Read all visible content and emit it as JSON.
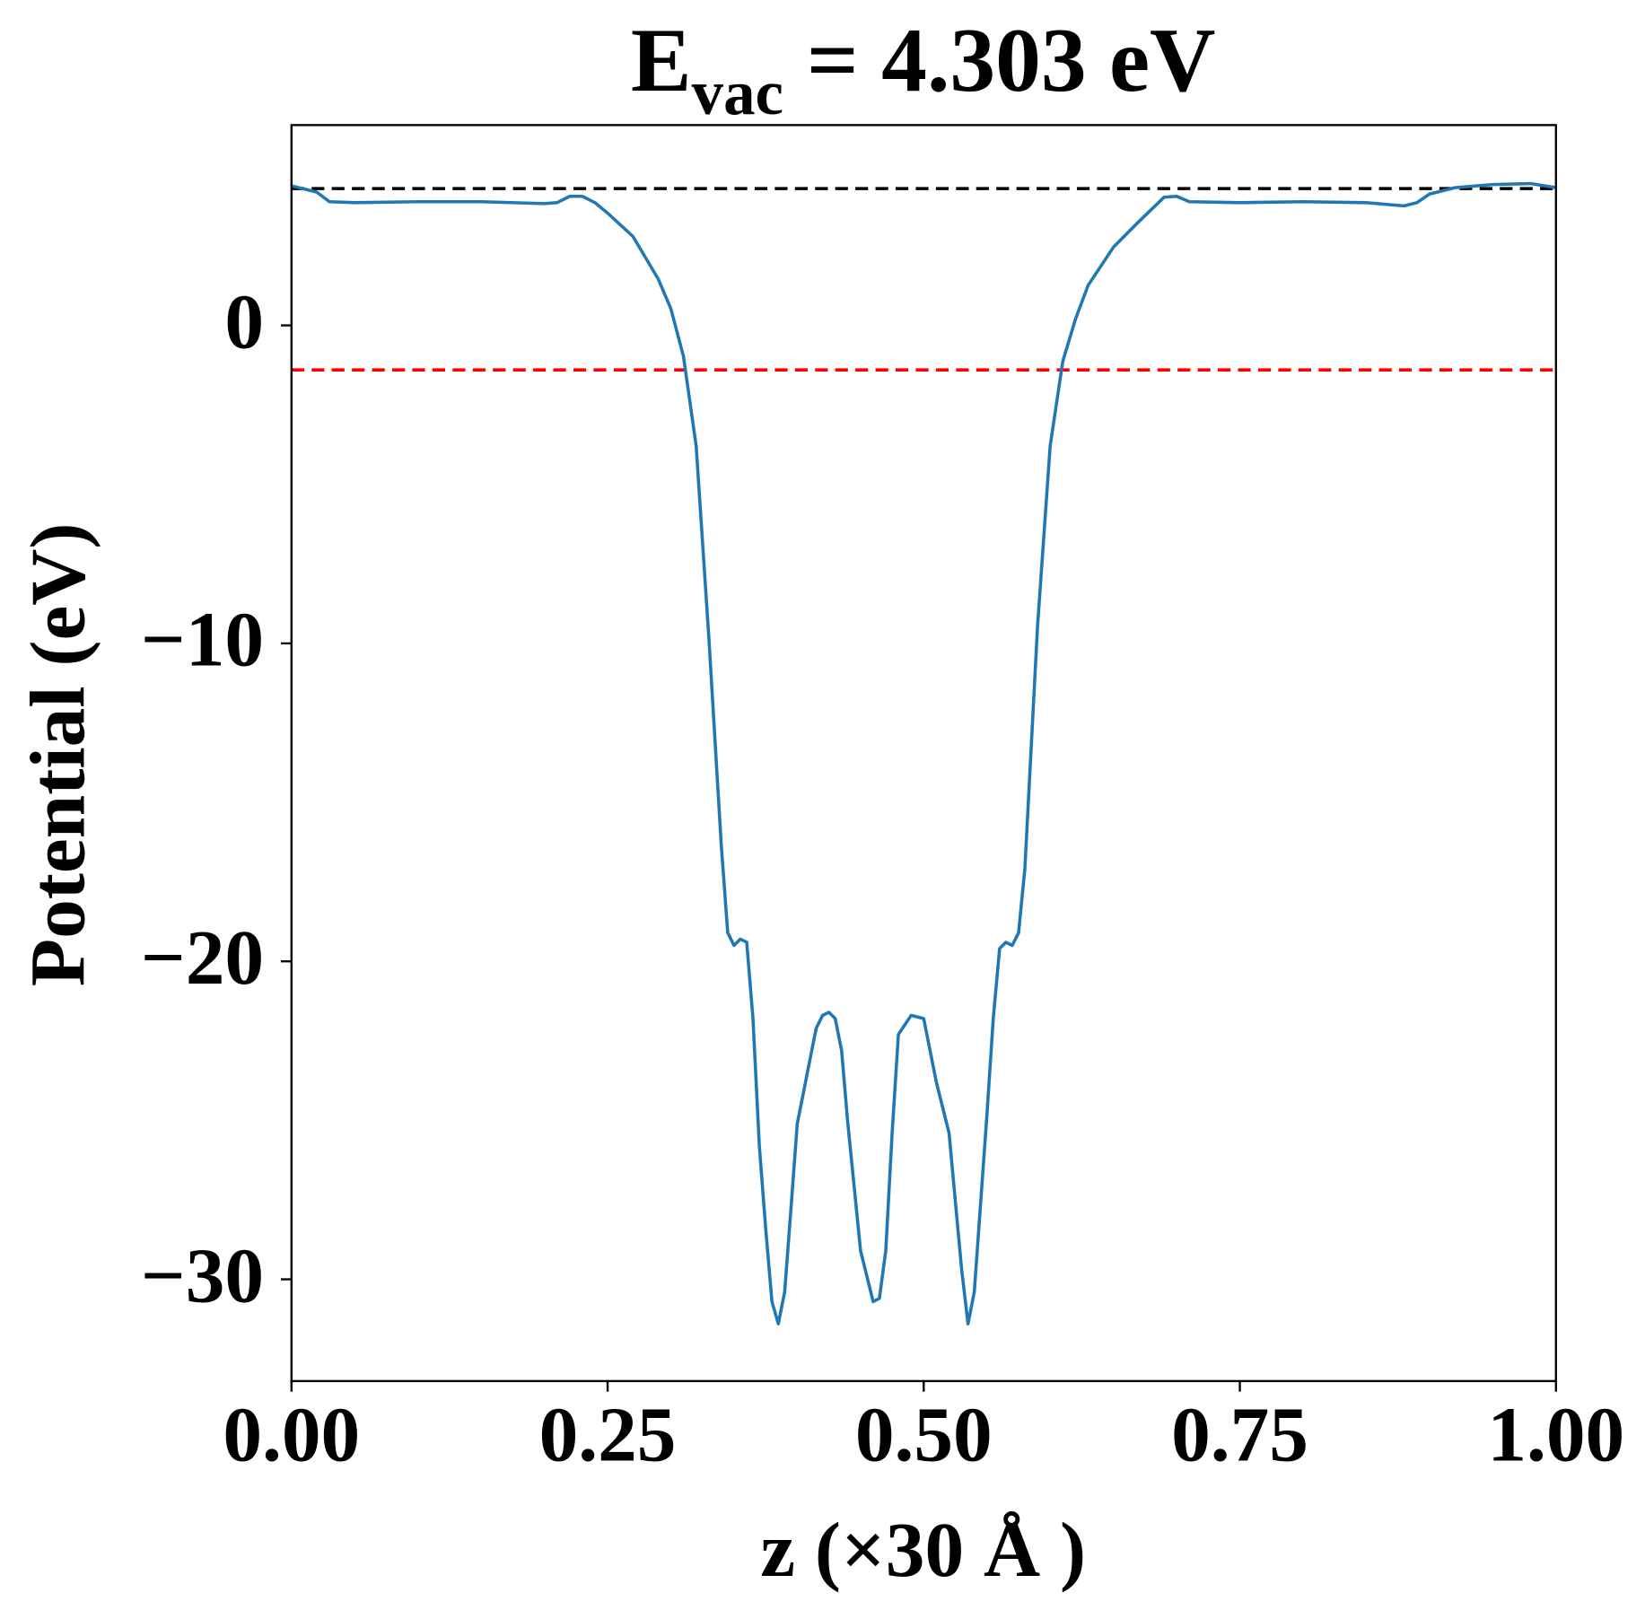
{
  "chart_data": {
    "type": "line",
    "title": {
      "main": "E",
      "sub": "vac",
      "rest": "= 4.303 eV"
    },
    "xlabel": "z (×30 Å )",
    "ylabel": "Potential (eV)",
    "xlim": [
      0,
      1
    ],
    "ylim": [
      -33.2,
      6.3
    ],
    "xticks": [
      {
        "value": 0,
        "label": "0.00"
      },
      {
        "value": 0.25,
        "label": "0.25"
      },
      {
        "value": 0.5,
        "label": "0.50"
      },
      {
        "value": 0.75,
        "label": "0.75"
      },
      {
        "value": 1,
        "label": "1.00"
      }
    ],
    "yticks": [
      {
        "value": -30,
        "label": "−30"
      },
      {
        "value": -20,
        "label": "−20"
      },
      {
        "value": -10,
        "label": "−10"
      },
      0
    ],
    "hlines": [
      {
        "value": 4.303,
        "color": "#000000"
      },
      {
        "value": -1.4,
        "color": "#ff0000"
      }
    ],
    "x": [
      0,
      0.02,
      0.03,
      0.05,
      0.1,
      0.15,
      0.2,
      0.21,
      0.22,
      0.23,
      0.24,
      0.25,
      0.27,
      0.29,
      0.3,
      0.31,
      0.32,
      0.33,
      0.34,
      0.345,
      0.35,
      0.355,
      0.36,
      0.365,
      0.37,
      0.375,
      0.38,
      0.385,
      0.39,
      0.395,
      0.4,
      0.405,
      0.41,
      0.415,
      0.42,
      0.425,
      0.43,
      0.435,
      0.44,
      0.45,
      0.46,
      0.465,
      0.47,
      0.475,
      0.48,
      0.49,
      0.5,
      0.51,
      0.52,
      0.53,
      0.535,
      0.54,
      0.55,
      0.555,
      0.56,
      0.565,
      0.57,
      0.575,
      0.58,
      0.59,
      0.6,
      0.61,
      0.62,
      0.63,
      0.65,
      0.67,
      0.69,
      0.7,
      0.71,
      0.75,
      0.8,
      0.85,
      0.87,
      0.88,
      0.89,
      0.9,
      0.92,
      0.95,
      0.98,
      1
    ],
    "series": [
      {
        "name": "potential",
        "color": "#1f77b4",
        "values": [
          4.39,
          4.19,
          3.89,
          3.86,
          3.89,
          3.89,
          3.83,
          3.86,
          4.06,
          4.06,
          3.86,
          3.53,
          2.8,
          1.46,
          0.53,
          -0.97,
          -3.79,
          -9.78,
          -16.4,
          -19.1,
          -19.5,
          -19.3,
          -19.4,
          -21.8,
          -25.8,
          -28.4,
          -30.7,
          -31.4,
          -30.4,
          -27.8,
          -25.1,
          -24.1,
          -23.1,
          -22.1,
          -21.7,
          -21.6,
          -21.8,
          -22.8,
          -25.1,
          -29.1,
          -30.7,
          -30.6,
          -29.1,
          -25.4,
          -22.3,
          -21.7,
          -21.8,
          -23.8,
          -25.4,
          -29.7,
          -31.4,
          -30.4,
          -24.8,
          -21.8,
          -19.6,
          -19.4,
          -19.5,
          -19.1,
          -17.1,
          -9.45,
          -3.79,
          -1.13,
          0.2,
          1.26,
          2.46,
          3.26,
          4.03,
          4.06,
          3.89,
          3.86,
          3.89,
          3.86,
          3.79,
          3.76,
          3.86,
          4.13,
          4.33,
          4.43,
          4.46,
          4.33
        ]
      }
    ]
  }
}
